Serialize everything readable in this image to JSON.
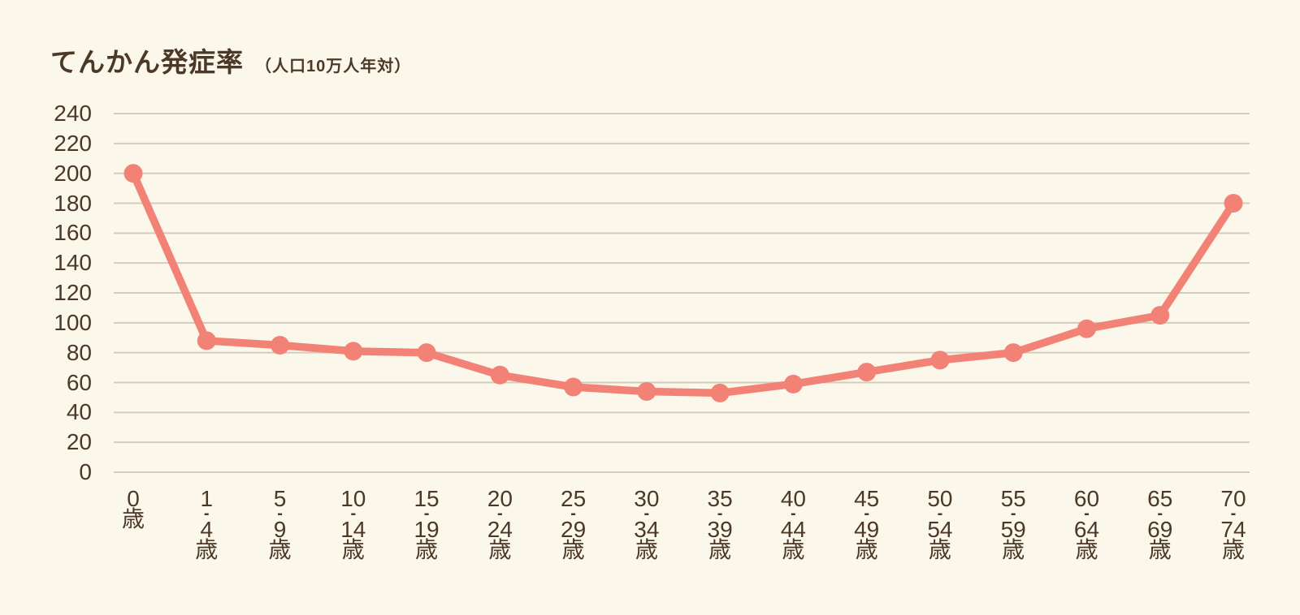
{
  "header": {
    "title": "てんかん発症率",
    "subtitle": "（人口10万人年対）"
  },
  "colors": {
    "background": "#FCF7EB",
    "line": "#F28276",
    "grid": "#D3CCBB",
    "text": "#4B3826"
  },
  "chart_data": {
    "type": "line",
    "title": "てんかん発症率（人口10万人年対）",
    "categories": [
      "0歳",
      "1-4歳",
      "5-9歳",
      "10-14歳",
      "15-19歳",
      "20-24歳",
      "25-29歳",
      "30-34歳",
      "35-39歳",
      "40-44歳",
      "45-49歳",
      "50-54歳",
      "55-59歳",
      "60-64歳",
      "65-69歳",
      "70-74歳"
    ],
    "values": [
      200,
      88,
      85,
      81,
      80,
      65,
      57,
      54,
      53,
      59,
      67,
      75,
      80,
      96,
      105,
      180
    ],
    "xlabel": "",
    "ylabel": "",
    "ylim": [
      0,
      240
    ],
    "ytick_step": 20,
    "grid": true,
    "legend": false,
    "series_name": "てんかん発症率"
  }
}
